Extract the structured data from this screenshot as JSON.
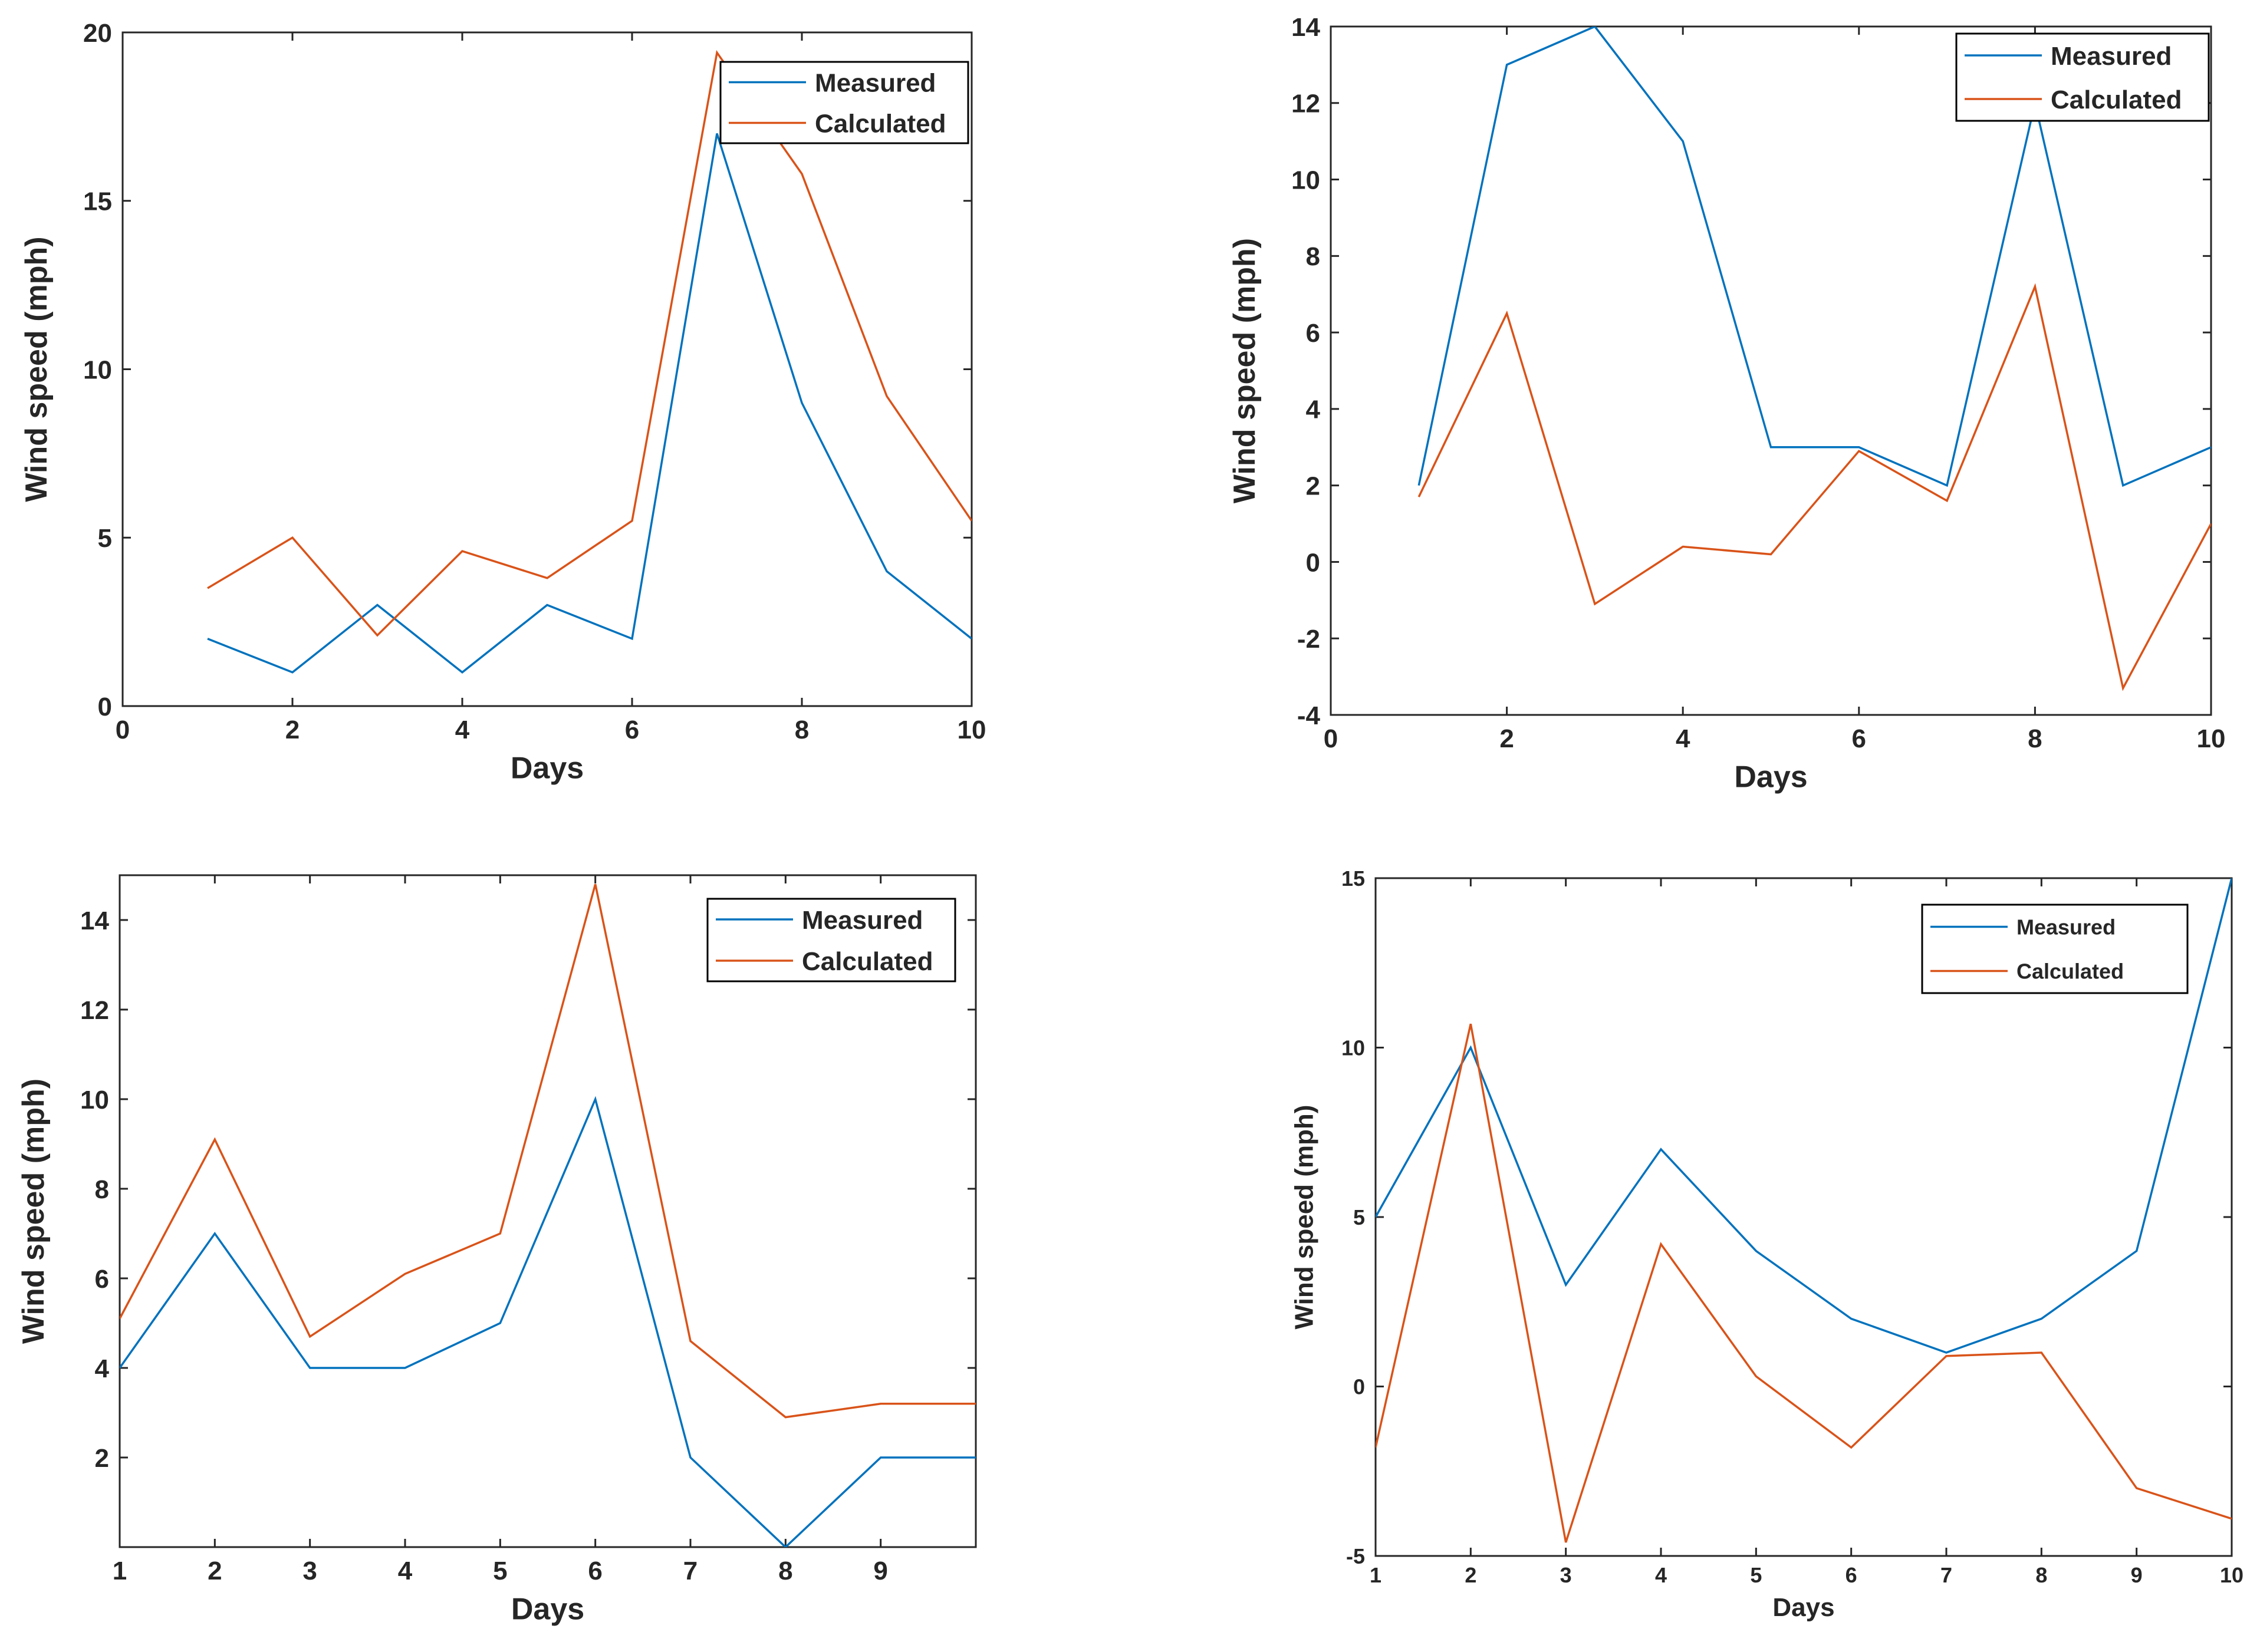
{
  "colors": {
    "measured": "#0072BD",
    "calculated": "#D95319",
    "axis": "#262626"
  },
  "chart_data": [
    {
      "type": "line",
      "xlabel": "Days",
      "ylabel": "Wind speed (mph)",
      "xlim": [
        0,
        10
      ],
      "ylim": [
        0,
        20
      ],
      "xticks": [
        0,
        2,
        4,
        6,
        8,
        10
      ],
      "yticks": [
        0,
        5,
        10,
        15,
        20
      ],
      "legend_position": "top-right",
      "series": [
        {
          "name": "Measured",
          "x": [
            1,
            2,
            3,
            4,
            5,
            6,
            7,
            8,
            9,
            10
          ],
          "values": [
            2,
            1,
            3,
            1,
            3,
            2,
            17,
            9,
            4,
            2
          ]
        },
        {
          "name": "Calculated",
          "x": [
            1,
            2,
            3,
            4,
            5,
            6,
            7,
            8,
            9,
            10
          ],
          "values": [
            3.5,
            5,
            2.1,
            4.6,
            3.8,
            5.5,
            19.4,
            15.8,
            9.2,
            5.5
          ]
        }
      ]
    },
    {
      "type": "line",
      "xlabel": "Days",
      "ylabel": "Wind speed (mph)",
      "xlim": [
        0,
        10
      ],
      "ylim": [
        -4,
        14
      ],
      "xticks": [
        0,
        2,
        4,
        6,
        8,
        10
      ],
      "yticks": [
        -4,
        -2,
        0,
        2,
        4,
        6,
        8,
        10,
        12,
        14
      ],
      "legend_position": "top-right",
      "series": [
        {
          "name": "Measured",
          "x": [
            1,
            2,
            3,
            4,
            5,
            6,
            7,
            8,
            9,
            10
          ],
          "values": [
            2,
            13,
            14,
            11,
            3,
            3,
            2,
            12,
            2,
            3
          ]
        },
        {
          "name": "Calculated",
          "x": [
            1,
            2,
            3,
            4,
            5,
            6,
            7,
            8,
            9,
            10
          ],
          "values": [
            1.7,
            6.5,
            -1.1,
            0.4,
            0.2,
            2.9,
            1.6,
            7.2,
            -3.3,
            1
          ]
        }
      ]
    },
    {
      "type": "line",
      "xlabel": "Days",
      "ylabel": "Wind speed (mph)",
      "xlim": [
        1,
        10
      ],
      "ylim": [
        0,
        15
      ],
      "xticks": [
        1,
        2,
        3,
        4,
        5,
        6,
        7,
        8,
        9
      ],
      "yticks": [
        2,
        4,
        6,
        8,
        10,
        12,
        14
      ],
      "legend_position": "top-right",
      "series": [
        {
          "name": "Measured",
          "x": [
            1,
            2,
            3,
            4,
            5,
            6,
            7,
            8,
            9,
            10
          ],
          "values": [
            4,
            7,
            4,
            4,
            5,
            10,
            2,
            0,
            2,
            2
          ]
        },
        {
          "name": "Calculated",
          "x": [
            1,
            2,
            3,
            4,
            5,
            6,
            7,
            8,
            9,
            10
          ],
          "values": [
            5.1,
            9.1,
            4.7,
            6.1,
            7,
            14.8,
            4.6,
            2.9,
            3.2,
            3.2
          ]
        }
      ]
    },
    {
      "type": "line",
      "xlabel": "Days",
      "ylabel": "Wind speed (mph)",
      "xlim": [
        1,
        10
      ],
      "ylim": [
        -5,
        15
      ],
      "xticks": [
        1,
        2,
        3,
        4,
        5,
        6,
        7,
        8,
        9,
        10
      ],
      "yticks": [
        -5,
        0,
        5,
        10,
        15
      ],
      "legend_position": "top-right",
      "series": [
        {
          "name": "Measured",
          "x": [
            1,
            2,
            3,
            4,
            5,
            6,
            7,
            8,
            9,
            10
          ],
          "values": [
            5,
            10,
            3,
            7,
            4,
            2,
            1,
            2,
            4,
            15
          ]
        },
        {
          "name": "Calculated",
          "x": [
            1,
            2,
            3,
            4,
            5,
            6,
            7,
            8,
            9,
            10
          ],
          "values": [
            -1.8,
            10.7,
            -4.6,
            4.2,
            0.3,
            -1.8,
            0.9,
            1,
            -3,
            -3.9
          ]
        }
      ]
    }
  ]
}
